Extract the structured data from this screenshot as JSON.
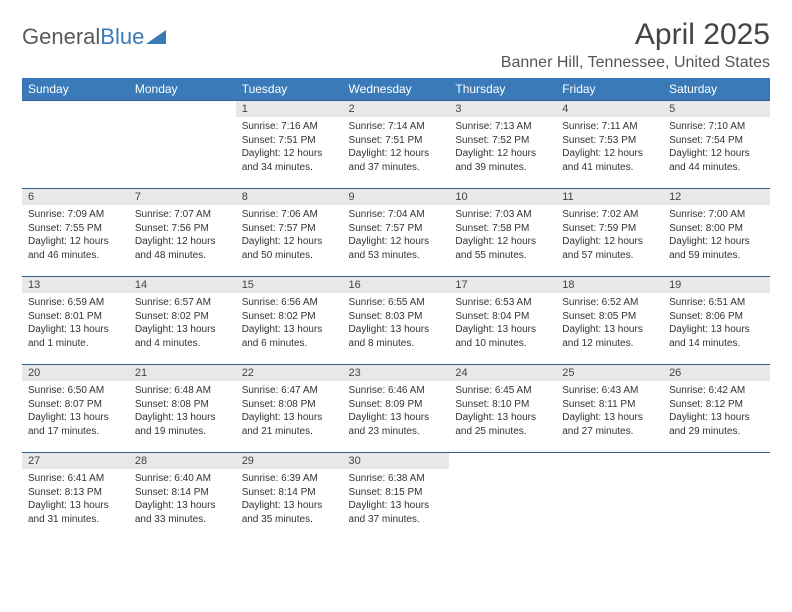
{
  "logo": {
    "part1": "General",
    "part2": "Blue"
  },
  "title": "April 2025",
  "location": "Banner Hill, Tennessee, United States",
  "colors": {
    "header_bg": "#3a7ab8",
    "row_border": "#2f5f8f",
    "daynum_bg": "#e8e8e8"
  },
  "weekdays": [
    "Sunday",
    "Monday",
    "Tuesday",
    "Wednesday",
    "Thursday",
    "Friday",
    "Saturday"
  ],
  "weeks": [
    [
      {
        "n": "",
        "sr": "",
        "ss": "",
        "dl1": "",
        "dl2": ""
      },
      {
        "n": "",
        "sr": "",
        "ss": "",
        "dl1": "",
        "dl2": ""
      },
      {
        "n": "1",
        "sr": "Sunrise: 7:16 AM",
        "ss": "Sunset: 7:51 PM",
        "dl1": "Daylight: 12 hours",
        "dl2": "and 34 minutes."
      },
      {
        "n": "2",
        "sr": "Sunrise: 7:14 AM",
        "ss": "Sunset: 7:51 PM",
        "dl1": "Daylight: 12 hours",
        "dl2": "and 37 minutes."
      },
      {
        "n": "3",
        "sr": "Sunrise: 7:13 AM",
        "ss": "Sunset: 7:52 PM",
        "dl1": "Daylight: 12 hours",
        "dl2": "and 39 minutes."
      },
      {
        "n": "4",
        "sr": "Sunrise: 7:11 AM",
        "ss": "Sunset: 7:53 PM",
        "dl1": "Daylight: 12 hours",
        "dl2": "and 41 minutes."
      },
      {
        "n": "5",
        "sr": "Sunrise: 7:10 AM",
        "ss": "Sunset: 7:54 PM",
        "dl1": "Daylight: 12 hours",
        "dl2": "and 44 minutes."
      }
    ],
    [
      {
        "n": "6",
        "sr": "Sunrise: 7:09 AM",
        "ss": "Sunset: 7:55 PM",
        "dl1": "Daylight: 12 hours",
        "dl2": "and 46 minutes."
      },
      {
        "n": "7",
        "sr": "Sunrise: 7:07 AM",
        "ss": "Sunset: 7:56 PM",
        "dl1": "Daylight: 12 hours",
        "dl2": "and 48 minutes."
      },
      {
        "n": "8",
        "sr": "Sunrise: 7:06 AM",
        "ss": "Sunset: 7:57 PM",
        "dl1": "Daylight: 12 hours",
        "dl2": "and 50 minutes."
      },
      {
        "n": "9",
        "sr": "Sunrise: 7:04 AM",
        "ss": "Sunset: 7:57 PM",
        "dl1": "Daylight: 12 hours",
        "dl2": "and 53 minutes."
      },
      {
        "n": "10",
        "sr": "Sunrise: 7:03 AM",
        "ss": "Sunset: 7:58 PM",
        "dl1": "Daylight: 12 hours",
        "dl2": "and 55 minutes."
      },
      {
        "n": "11",
        "sr": "Sunrise: 7:02 AM",
        "ss": "Sunset: 7:59 PM",
        "dl1": "Daylight: 12 hours",
        "dl2": "and 57 minutes."
      },
      {
        "n": "12",
        "sr": "Sunrise: 7:00 AM",
        "ss": "Sunset: 8:00 PM",
        "dl1": "Daylight: 12 hours",
        "dl2": "and 59 minutes."
      }
    ],
    [
      {
        "n": "13",
        "sr": "Sunrise: 6:59 AM",
        "ss": "Sunset: 8:01 PM",
        "dl1": "Daylight: 13 hours",
        "dl2": "and 1 minute."
      },
      {
        "n": "14",
        "sr": "Sunrise: 6:57 AM",
        "ss": "Sunset: 8:02 PM",
        "dl1": "Daylight: 13 hours",
        "dl2": "and 4 minutes."
      },
      {
        "n": "15",
        "sr": "Sunrise: 6:56 AM",
        "ss": "Sunset: 8:02 PM",
        "dl1": "Daylight: 13 hours",
        "dl2": "and 6 minutes."
      },
      {
        "n": "16",
        "sr": "Sunrise: 6:55 AM",
        "ss": "Sunset: 8:03 PM",
        "dl1": "Daylight: 13 hours",
        "dl2": "and 8 minutes."
      },
      {
        "n": "17",
        "sr": "Sunrise: 6:53 AM",
        "ss": "Sunset: 8:04 PM",
        "dl1": "Daylight: 13 hours",
        "dl2": "and 10 minutes."
      },
      {
        "n": "18",
        "sr": "Sunrise: 6:52 AM",
        "ss": "Sunset: 8:05 PM",
        "dl1": "Daylight: 13 hours",
        "dl2": "and 12 minutes."
      },
      {
        "n": "19",
        "sr": "Sunrise: 6:51 AM",
        "ss": "Sunset: 8:06 PM",
        "dl1": "Daylight: 13 hours",
        "dl2": "and 14 minutes."
      }
    ],
    [
      {
        "n": "20",
        "sr": "Sunrise: 6:50 AM",
        "ss": "Sunset: 8:07 PM",
        "dl1": "Daylight: 13 hours",
        "dl2": "and 17 minutes."
      },
      {
        "n": "21",
        "sr": "Sunrise: 6:48 AM",
        "ss": "Sunset: 8:08 PM",
        "dl1": "Daylight: 13 hours",
        "dl2": "and 19 minutes."
      },
      {
        "n": "22",
        "sr": "Sunrise: 6:47 AM",
        "ss": "Sunset: 8:08 PM",
        "dl1": "Daylight: 13 hours",
        "dl2": "and 21 minutes."
      },
      {
        "n": "23",
        "sr": "Sunrise: 6:46 AM",
        "ss": "Sunset: 8:09 PM",
        "dl1": "Daylight: 13 hours",
        "dl2": "and 23 minutes."
      },
      {
        "n": "24",
        "sr": "Sunrise: 6:45 AM",
        "ss": "Sunset: 8:10 PM",
        "dl1": "Daylight: 13 hours",
        "dl2": "and 25 minutes."
      },
      {
        "n": "25",
        "sr": "Sunrise: 6:43 AM",
        "ss": "Sunset: 8:11 PM",
        "dl1": "Daylight: 13 hours",
        "dl2": "and 27 minutes."
      },
      {
        "n": "26",
        "sr": "Sunrise: 6:42 AM",
        "ss": "Sunset: 8:12 PM",
        "dl1": "Daylight: 13 hours",
        "dl2": "and 29 minutes."
      }
    ],
    [
      {
        "n": "27",
        "sr": "Sunrise: 6:41 AM",
        "ss": "Sunset: 8:13 PM",
        "dl1": "Daylight: 13 hours",
        "dl2": "and 31 minutes."
      },
      {
        "n": "28",
        "sr": "Sunrise: 6:40 AM",
        "ss": "Sunset: 8:14 PM",
        "dl1": "Daylight: 13 hours",
        "dl2": "and 33 minutes."
      },
      {
        "n": "29",
        "sr": "Sunrise: 6:39 AM",
        "ss": "Sunset: 8:14 PM",
        "dl1": "Daylight: 13 hours",
        "dl2": "and 35 minutes."
      },
      {
        "n": "30",
        "sr": "Sunrise: 6:38 AM",
        "ss": "Sunset: 8:15 PM",
        "dl1": "Daylight: 13 hours",
        "dl2": "and 37 minutes."
      },
      {
        "n": "",
        "sr": "",
        "ss": "",
        "dl1": "",
        "dl2": ""
      },
      {
        "n": "",
        "sr": "",
        "ss": "",
        "dl1": "",
        "dl2": ""
      },
      {
        "n": "",
        "sr": "",
        "ss": "",
        "dl1": "",
        "dl2": ""
      }
    ]
  ]
}
